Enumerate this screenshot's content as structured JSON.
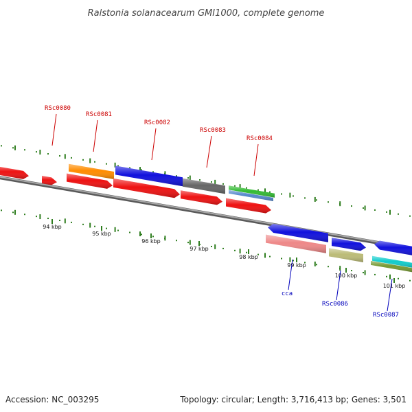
{
  "map": {
    "title": "Ralstonia solanacearum GMI1000, complete genome",
    "accession": "Accession: NC_003295",
    "summary": "Topology: circular; Length: 3,716,413 bp; Genes: 3,501",
    "tick_labels": [
      "94 kbp",
      "95 kbp",
      "96 kbp",
      "97 kbp",
      "98 kbp",
      "99 kbp",
      "100 kbp",
      "101 kbp"
    ],
    "genes_forward": [
      "RSc0080",
      "RSc0081",
      "RSc0082",
      "RSc0083",
      "RSc0084"
    ],
    "genes_reverse": [
      "cca",
      "RSc0086",
      "RSc0087"
    ],
    "colors": {
      "forward_label": "#cc0000",
      "reverse_label": "#0000bb",
      "backbone": "#8a8a8a",
      "tick": "#2e7d1e",
      "red": "#ee1111",
      "orange": "#ff8c00",
      "blue": "#1111dd",
      "gray": "#666666",
      "green": "#33bb33",
      "steelblue": "#5588cc",
      "pink": "#ee8888",
      "khaki": "#bbbb77",
      "cyan": "#11cccc",
      "olive": "#779933"
    }
  }
}
